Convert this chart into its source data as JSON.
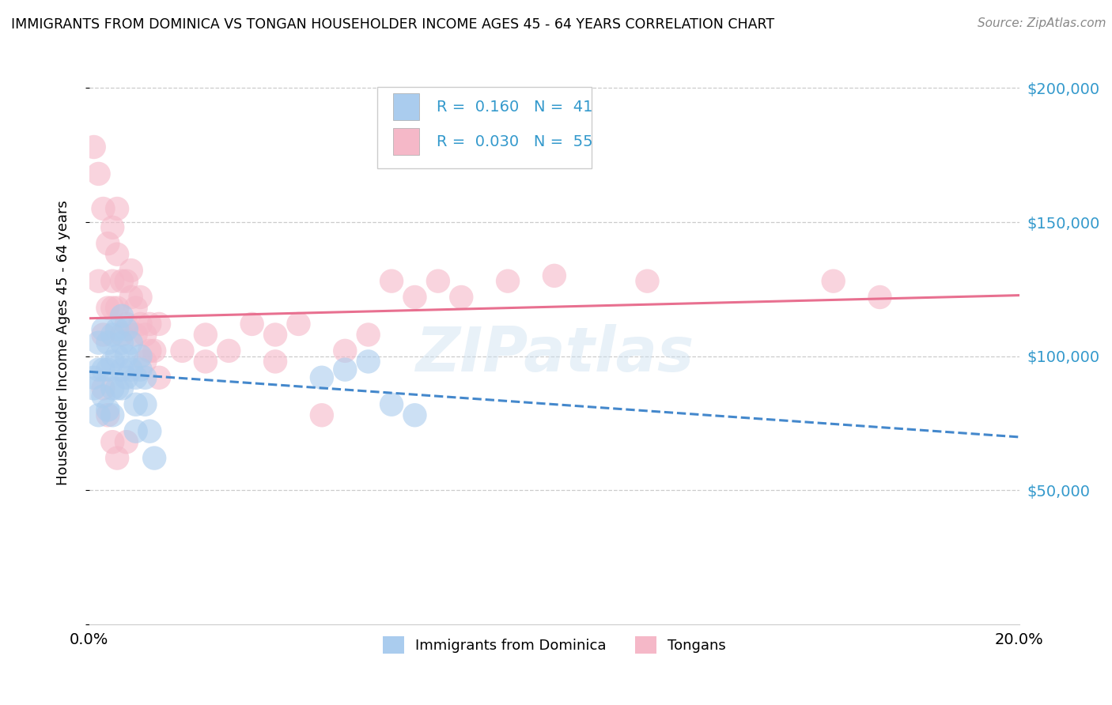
{
  "title": "IMMIGRANTS FROM DOMINICA VS TONGAN HOUSEHOLDER INCOME AGES 45 - 64 YEARS CORRELATION CHART",
  "source": "Source: ZipAtlas.com",
  "ylabel": "Householder Income Ages 45 - 64 years",
  "xlim": [
    0,
    0.2
  ],
  "ylim": [
    0,
    210000
  ],
  "yticks": [
    0,
    50000,
    100000,
    150000,
    200000
  ],
  "ytick_labels": [
    "",
    "$50,000",
    "$100,000",
    "$150,000",
    "$200,000"
  ],
  "watermark": "ZIPatlas",
  "blue_color": "#aaccee",
  "pink_color": "#f5b8c8",
  "blue_line_color": "#4488cc",
  "pink_line_color": "#e87090",
  "dominica_x": [
    0.001,
    0.001,
    0.002,
    0.002,
    0.002,
    0.003,
    0.003,
    0.003,
    0.004,
    0.004,
    0.004,
    0.005,
    0.005,
    0.005,
    0.005,
    0.006,
    0.006,
    0.006,
    0.007,
    0.007,
    0.007,
    0.007,
    0.008,
    0.008,
    0.008,
    0.009,
    0.009,
    0.01,
    0.01,
    0.01,
    0.011,
    0.011,
    0.012,
    0.012,
    0.013,
    0.014,
    0.05,
    0.055,
    0.06,
    0.065,
    0.07
  ],
  "dominica_y": [
    88000,
    92000,
    78000,
    95000,
    105000,
    85000,
    95000,
    110000,
    80000,
    95000,
    105000,
    88000,
    98000,
    108000,
    78000,
    100000,
    110000,
    88000,
    95000,
    105000,
    115000,
    88000,
    92000,
    100000,
    110000,
    95000,
    105000,
    72000,
    82000,
    92000,
    95000,
    100000,
    82000,
    92000,
    72000,
    62000,
    92000,
    95000,
    98000,
    82000,
    78000
  ],
  "tongan_x": [
    0.001,
    0.002,
    0.002,
    0.003,
    0.003,
    0.004,
    0.004,
    0.005,
    0.005,
    0.005,
    0.006,
    0.006,
    0.006,
    0.007,
    0.007,
    0.008,
    0.008,
    0.009,
    0.009,
    0.01,
    0.01,
    0.011,
    0.011,
    0.012,
    0.012,
    0.013,
    0.013,
    0.014,
    0.015,
    0.015,
    0.02,
    0.025,
    0.025,
    0.03,
    0.035,
    0.04,
    0.04,
    0.045,
    0.05,
    0.055,
    0.06,
    0.065,
    0.07,
    0.075,
    0.08,
    0.09,
    0.1,
    0.12,
    0.16,
    0.17,
    0.003,
    0.004,
    0.005,
    0.006,
    0.008
  ],
  "tongan_y": [
    178000,
    168000,
    128000,
    155000,
    108000,
    142000,
    118000,
    148000,
    128000,
    118000,
    138000,
    155000,
    118000,
    128000,
    108000,
    128000,
    112000,
    122000,
    132000,
    118000,
    108000,
    112000,
    122000,
    98000,
    108000,
    112000,
    102000,
    102000,
    112000,
    92000,
    102000,
    98000,
    108000,
    102000,
    112000,
    98000,
    108000,
    112000,
    78000,
    102000,
    108000,
    128000,
    122000,
    128000,
    122000,
    128000,
    130000,
    128000,
    128000,
    122000,
    88000,
    78000,
    68000,
    62000,
    68000
  ]
}
